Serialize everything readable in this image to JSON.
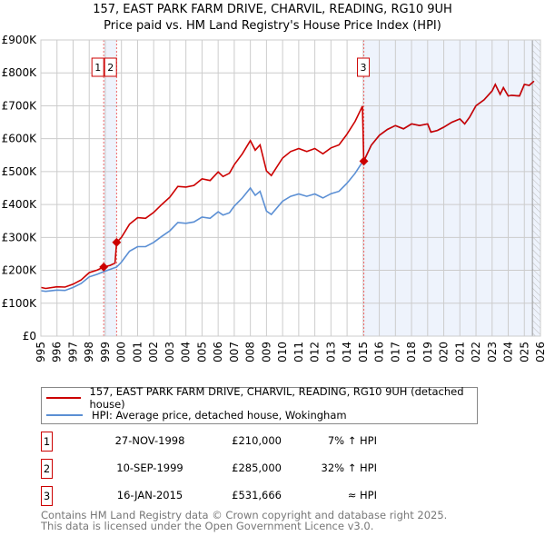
{
  "chart_data": {
    "type": "line",
    "title": "157, EAST PARK FARM DRIVE, CHARVIL, READING, RG10 9UH",
    "subtitle": "Price paid vs. HM Land Registry's House Price Index (HPI)",
    "xlim": [
      1995,
      2026
    ],
    "ylim": [
      0,
      900000
    ],
    "x_ticks": [
      "1995",
      "1996",
      "1997",
      "1998",
      "1999",
      "2000",
      "2001",
      "2002",
      "2003",
      "2004",
      "2005",
      "2006",
      "2007",
      "2008",
      "2009",
      "2010",
      "2011",
      "2012",
      "2013",
      "2014",
      "2015",
      "2016",
      "2017",
      "2018",
      "2019",
      "2020",
      "2021",
      "2022",
      "2023",
      "2024",
      "2025",
      "2026"
    ],
    "y_ticks": [
      {
        "v": 0,
        "label": "£0"
      },
      {
        "v": 100000,
        "label": "£100K"
      },
      {
        "v": 200000,
        "label": "£200K"
      },
      {
        "v": 300000,
        "label": "£300K"
      },
      {
        "v": 400000,
        "label": "£400K"
      },
      {
        "v": 500000,
        "label": "£500K"
      },
      {
        "v": 600000,
        "label": "£600K"
      },
      {
        "v": 700000,
        "label": "£700K"
      },
      {
        "v": 800000,
        "label": "£800K"
      },
      {
        "v": 900000,
        "label": "£900K"
      }
    ],
    "grid": true,
    "forecast_hatch_from": 2025.5,
    "colors": {
      "property": "#cc0000",
      "hpi": "#5b8fd4",
      "shade": "#eef3fc"
    },
    "series": [
      {
        "name": "hpi",
        "x": [
          1995,
          1995.3,
          1996,
          1996.5,
          1997,
          1997.5,
          1998,
          1998.5,
          1998.9,
          1999.3,
          1999.7,
          2000,
          2000.5,
          2001,
          2001.5,
          2002,
          2002.5,
          2003,
          2003.5,
          2004,
          2004.5,
          2005,
          2005.5,
          2006,
          2006.3,
          2006.7,
          2007,
          2007.5,
          2008,
          2008.3,
          2008.6,
          2009,
          2009.3,
          2010,
          2010.5,
          2011,
          2011.5,
          2012,
          2012.5,
          2013,
          2013.5,
          2014,
          2014.5,
          2014.9,
          2015.04,
          2015.5,
          2016,
          2016.5,
          2017,
          2017.5,
          2018,
          2018.5,
          2019,
          2019.2,
          2019.6,
          2020,
          2020.5,
          2021,
          2021.3,
          2021.6,
          2022,
          2022.5,
          2023,
          2023.2,
          2023.5,
          2023.7,
          2024,
          2024.2,
          2024.7,
          2025,
          2025.3,
          2025.6
        ],
        "values": [
          138000,
          136000,
          140000,
          139000,
          148000,
          160000,
          180000,
          188000,
          196000,
          203000,
          210000,
          225000,
          258000,
          272000,
          272000,
          285000,
          303000,
          320000,
          345000,
          343000,
          347000,
          362000,
          358000,
          378000,
          368000,
          375000,
          395000,
          420000,
          450000,
          428000,
          440000,
          380000,
          370000,
          410000,
          425000,
          432000,
          425000,
          432000,
          420000,
          433000,
          440000,
          465000,
          495000,
          525000,
          531666,
          580000,
          610000,
          628000,
          640000,
          630000,
          645000,
          640000,
          645000,
          620000,
          625000,
          635000,
          650000,
          660000,
          645000,
          665000,
          700000,
          718000,
          745000,
          765000,
          735000,
          755000,
          730000,
          732000,
          730000,
          765000,
          762000,
          775000
        ]
      },
      {
        "name": "property",
        "x": [
          1995,
          1995.3,
          1996,
          1996.5,
          1997,
          1997.5,
          1998,
          1998.5,
          1998.9,
          1999.3,
          1999.6,
          1999.7,
          2000,
          2000.5,
          2001,
          2001.5,
          2002,
          2002.5,
          2003,
          2003.5,
          2004,
          2004.5,
          2005,
          2005.5,
          2006,
          2006.3,
          2006.7,
          2007,
          2007.5,
          2008,
          2008.3,
          2008.6,
          2009,
          2009.3,
          2010,
          2010.5,
          2011,
          2011.5,
          2012,
          2012.5,
          2013,
          2013.5,
          2014,
          2014.5,
          2014.95,
          2015.04,
          2015.5,
          2016,
          2016.5,
          2017,
          2017.5,
          2018,
          2018.5,
          2019,
          2019.2,
          2019.6,
          2020,
          2020.5,
          2021,
          2021.3,
          2021.6,
          2022,
          2022.5,
          2023,
          2023.2,
          2023.5,
          2023.7,
          2024,
          2024.2,
          2024.7,
          2025,
          2025.3,
          2025.6
        ],
        "values": [
          148000,
          145000,
          150000,
          149000,
          158000,
          171000,
          193000,
          201000,
          210000,
          215000,
          222000,
          285000,
          300000,
          340000,
          360000,
          358000,
          376000,
          400000,
          422000,
          455000,
          453000,
          458000,
          478000,
          473000,
          499000,
          485000,
          495000,
          521000,
          554000,
          594000,
          565000,
          581000,
          502000,
          488000,
          541000,
          561000,
          570000,
          561000,
          570000,
          554000,
          572000,
          581000,
          614000,
          653000,
          699000,
          531666,
          580000,
          610000,
          628000,
          640000,
          630000,
          645000,
          640000,
          645000,
          620000,
          625000,
          635000,
          650000,
          660000,
          645000,
          665000,
          700000,
          718000,
          745000,
          765000,
          735000,
          755000,
          730000,
          732000,
          730000,
          765000,
          762000,
          775000
        ]
      }
    ],
    "sales": [
      {
        "id": "1",
        "x": 1998.9,
        "price": 210000
      },
      {
        "id": "2",
        "x": 1999.7,
        "price": 285000
      },
      {
        "id": "3",
        "x": 2015.04,
        "price": 531666
      }
    ]
  },
  "legend": {
    "property": "157, EAST PARK FARM DRIVE, CHARVIL, READING, RG10 9UH (detached house)",
    "hpi": "HPI: Average price, detached house, Wokingham"
  },
  "transactions": [
    {
      "num": "1",
      "date": "27-NOV-1998",
      "price": "£210,000",
      "hpi": "7% ↑ HPI"
    },
    {
      "num": "2",
      "date": "10-SEP-1999",
      "price": "£285,000",
      "hpi": "32% ↑ HPI"
    },
    {
      "num": "3",
      "date": "16-JAN-2015",
      "price": "£531,666",
      "hpi": "≈ HPI"
    }
  ],
  "footer": [
    "Contains HM Land Registry data © Crown copyright and database right 2025.",
    "This data is licensed under the Open Government Licence v3.0."
  ]
}
